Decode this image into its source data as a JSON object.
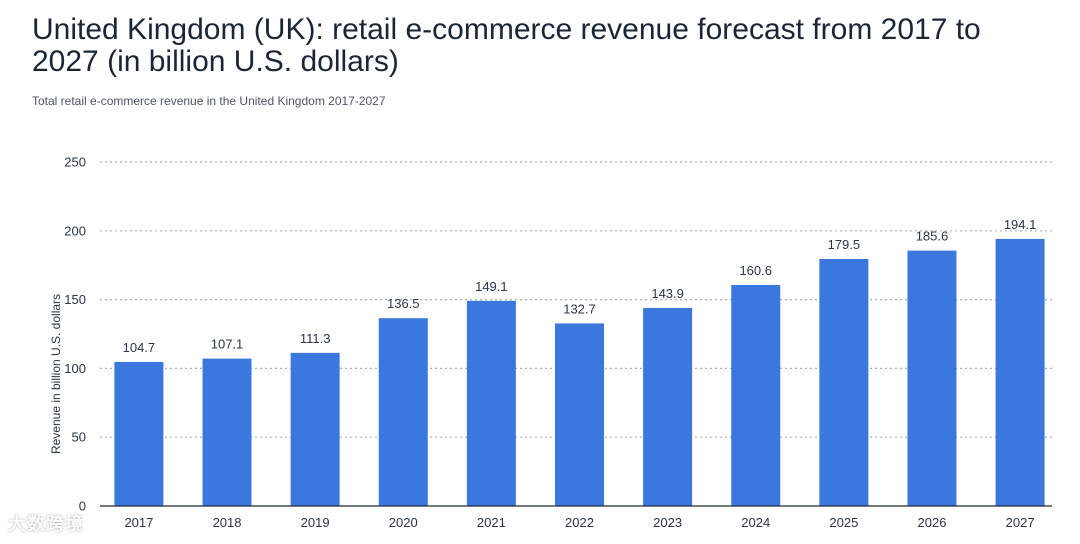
{
  "header": {
    "title": "United Kingdom (UK): retail e-commerce revenue forecast from 2017 to 2027 (in billion U.S. dollars)",
    "subtitle": "Total retail e-commerce revenue in the United Kingdom 2017-2027"
  },
  "watermark": {
    "text": "大数跨境"
  },
  "chart_data": {
    "type": "bar",
    "title": "United Kingdom (UK): retail e-commerce revenue forecast from 2017 to 2027 (in billion U.S. dollars)",
    "subtitle": "Total retail e-commerce revenue in the United Kingdom 2017-2027",
    "xlabel": "",
    "ylabel": "Revenue in billion U.S. dollars",
    "categories": [
      "2017",
      "2018",
      "2019",
      "2020",
      "2021",
      "2022",
      "2023",
      "2024",
      "2025",
      "2026",
      "2027"
    ],
    "values": [
      104.7,
      107.1,
      111.3,
      136.5,
      149.1,
      132.7,
      143.9,
      160.6,
      179.5,
      185.6,
      194.1
    ],
    "data_labels": [
      "104.7",
      "107.1",
      "111.3",
      "136.5",
      "149.1",
      "132.7",
      "143.9",
      "160.6",
      "179.5",
      "185.6",
      "194.1"
    ],
    "ylim": [
      0,
      250
    ],
    "yticks": [
      0,
      50,
      100,
      150,
      200,
      250
    ],
    "grid": true,
    "bar_color": "#3a78de"
  }
}
